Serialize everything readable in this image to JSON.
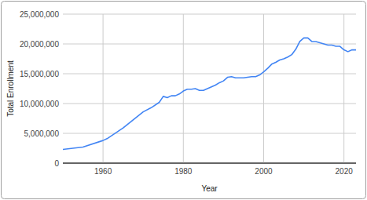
{
  "chart_data": {
    "type": "line",
    "x_label": "Year",
    "y_label": "Total Enrollment",
    "x": [
      1950,
      1955,
      1960,
      1961,
      1965,
      1970,
      1972,
      1974,
      1975,
      1976,
      1977,
      1978,
      1979,
      1980,
      1981,
      1982,
      1983,
      1984,
      1985,
      1986,
      1987,
      1988,
      1989,
      1990,
      1991,
      1992,
      1993,
      1994,
      1995,
      1996,
      1997,
      1998,
      1999,
      2000,
      2001,
      2002,
      2003,
      2004,
      2005,
      2006,
      2007,
      2008,
      2009,
      2010,
      2011,
      2012,
      2013,
      2014,
      2015,
      2016,
      2017,
      2018,
      2019,
      2020,
      2021,
      2022,
      2023
    ],
    "values": [
      2300000,
      2700000,
      3800000,
      4100000,
      5900000,
      8600000,
      9300000,
      10200000,
      11200000,
      11000000,
      11300000,
      11300000,
      11600000,
      12100000,
      12400000,
      12400000,
      12500000,
      12200000,
      12200000,
      12500000,
      12800000,
      13100000,
      13500000,
      13800000,
      14400000,
      14500000,
      14300000,
      14300000,
      14300000,
      14400000,
      14500000,
      14500000,
      14800000,
      15300000,
      15900000,
      16600000,
      16900000,
      17300000,
      17500000,
      17800000,
      18200000,
      19100000,
      20400000,
      21000000,
      21000000,
      20400000,
      20400000,
      20200000,
      20000000,
      19800000,
      19800000,
      19600000,
      19600000,
      19000000,
      18700000,
      19000000,
      19000000
    ],
    "color": "#4285f4",
    "xlim": [
      1950,
      2023
    ],
    "xticks": [
      1960,
      1980,
      2000,
      2020
    ],
    "ylim": [
      0,
      25000000
    ],
    "yticks": [
      0,
      {
        "value": 5000000,
        "label": "5,000,000"
      },
      {
        "value": 10000000,
        "label": "10,000,000"
      },
      {
        "value": 15000000,
        "label": "15,000,000"
      },
      {
        "value": 20000000,
        "label": "20,000,000"
      },
      {
        "value": 25000000,
        "label": "25,000,000"
      }
    ],
    "grid": true
  }
}
